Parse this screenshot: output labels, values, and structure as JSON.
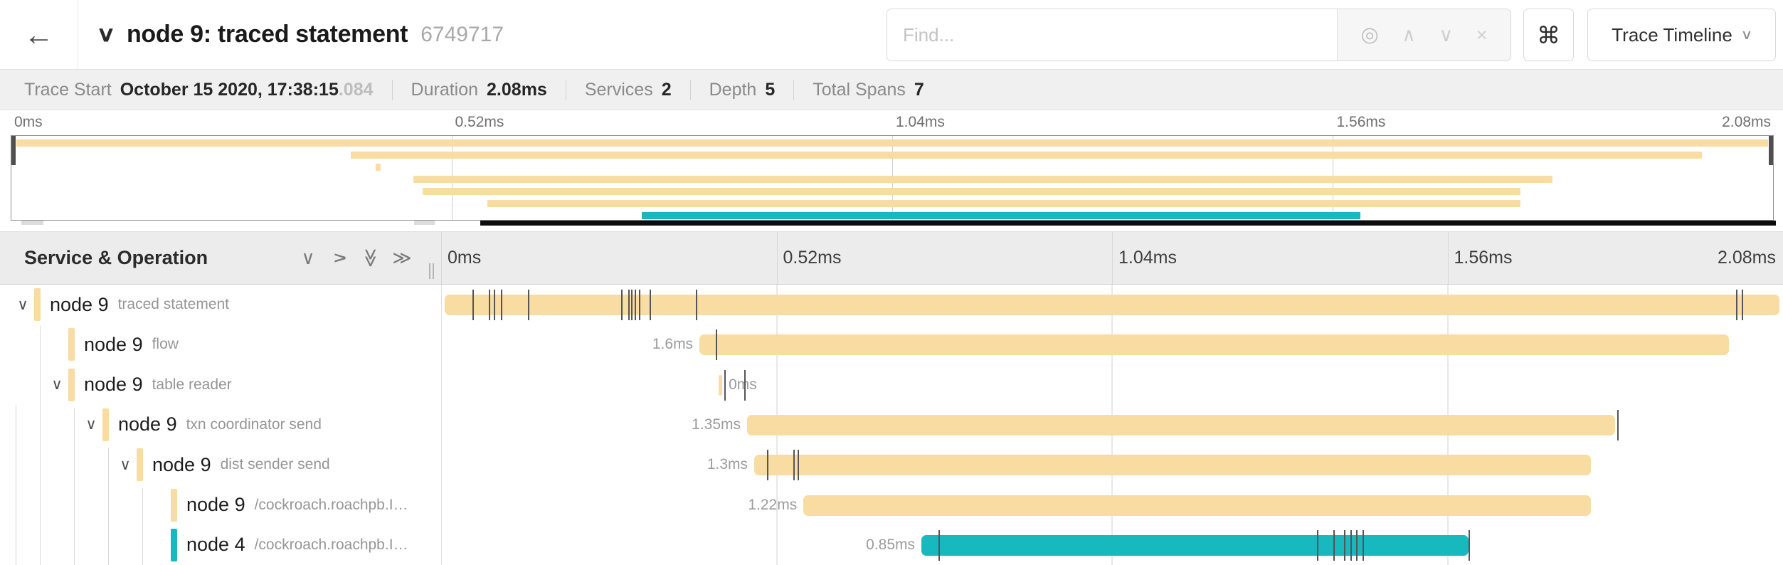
{
  "header": {
    "back_icon": "←",
    "collapse_icon": "∨",
    "title": "node 9: traced statement",
    "trace_id": "6749717",
    "find_placeholder": "Find...",
    "find_tools": [
      "locate-icon",
      "prev-result-icon",
      "next-result-icon",
      "clear-icon"
    ],
    "find_tool_glyphs": [
      "◎",
      "∧",
      "∨",
      "×"
    ],
    "shortcut_icon": "⌘",
    "view_dropdown_label": "Trace Timeline",
    "view_dropdown_caret": "∨"
  },
  "summary": {
    "items": [
      {
        "label": "Trace Start",
        "value": "October 15 2020, 17:38:15",
        "suffix": ".084"
      },
      {
        "label": "Duration",
        "value": "2.08ms",
        "suffix": ""
      },
      {
        "label": "Services",
        "value": "2",
        "suffix": ""
      },
      {
        "label": "Depth",
        "value": "5",
        "suffix": ""
      },
      {
        "label": "Total Spans",
        "value": "7",
        "suffix": ""
      }
    ]
  },
  "minimap": {
    "ticks": [
      "0ms",
      "0.52ms",
      "1.04ms",
      "1.56ms",
      "2.08ms"
    ]
  },
  "timeline": {
    "left_header": "Service & Operation",
    "header_icons": [
      "collapse-one-icon",
      "expand-one-icon",
      "collapse-all-icon",
      "expand-all-icon"
    ],
    "ticks": [
      "0ms",
      "0.52ms",
      "1.04ms",
      "1.56ms",
      "2.08ms"
    ],
    "colors": {
      "node9": "#F8DCA1",
      "node4": "#17B8BE"
    },
    "rows": [
      {
        "service": "node 9",
        "operation": "traced statement",
        "depth": 0,
        "expandable": true,
        "color": "#F8DCA1",
        "start": 0.0027,
        "end": 0.9973,
        "duration_label": "",
        "label_side": "none",
        "log_ticks": [
          0.0233,
          0.0355,
          0.0392,
          0.0445,
          0.0647,
          0.1341,
          0.1394,
          0.1416,
          0.1442,
          0.1474,
          0.1553,
          0.1898,
          0.965,
          0.9692
        ]
      },
      {
        "service": "node 9",
        "operation": "flow",
        "depth": 1,
        "expandable": false,
        "color": "#F8DCA1",
        "start": 0.1925,
        "end": 0.9597,
        "duration_label": "1.6ms",
        "label_side": "left",
        "log_ticks": [
          0.2047
        ]
      },
      {
        "service": "node 9",
        "operation": "table reader",
        "depth": 1,
        "expandable": true,
        "color": "#F8DCA1",
        "start": 0.2068,
        "end": 0.2095,
        "duration_label": "0ms",
        "label_side": "right",
        "log_ticks": [
          0.211,
          0.2259
        ]
      },
      {
        "service": "node 9",
        "operation": "txn coordinator send",
        "depth": 2,
        "expandable": true,
        "color": "#F8DCA1",
        "start": 0.228,
        "end": 0.875,
        "duration_label": "1.35ms",
        "label_side": "left",
        "log_ticks": [
          0.8765
        ]
      },
      {
        "service": "node 9",
        "operation": "dist sender send",
        "depth": 3,
        "expandable": true,
        "color": "#F8DCA1",
        "start": 0.2333,
        "end": 0.8568,
        "duration_label": "1.3ms",
        "label_side": "left",
        "log_ticks": [
          0.2429,
          0.2625,
          0.2656
        ]
      },
      {
        "service": "node 9",
        "operation": "/cockroach.roachpb.I…",
        "depth": 4,
        "expandable": false,
        "color": "#F8DCA1",
        "start": 0.27,
        "end": 0.8568,
        "duration_label": "1.22ms",
        "label_side": "left",
        "log_ticks": []
      },
      {
        "service": "node 4",
        "operation": "/cockroach.roachpb.I…",
        "depth": 4,
        "expandable": false,
        "color": "#17B8BE",
        "start": 0.3579,
        "end": 0.7656,
        "duration_label": "0.85ms",
        "label_side": "left",
        "log_ticks": [
          0.3706,
          0.6527,
          0.6649,
          0.6729,
          0.6776,
          0.6819,
          0.6866,
          0.7656
        ]
      }
    ]
  }
}
